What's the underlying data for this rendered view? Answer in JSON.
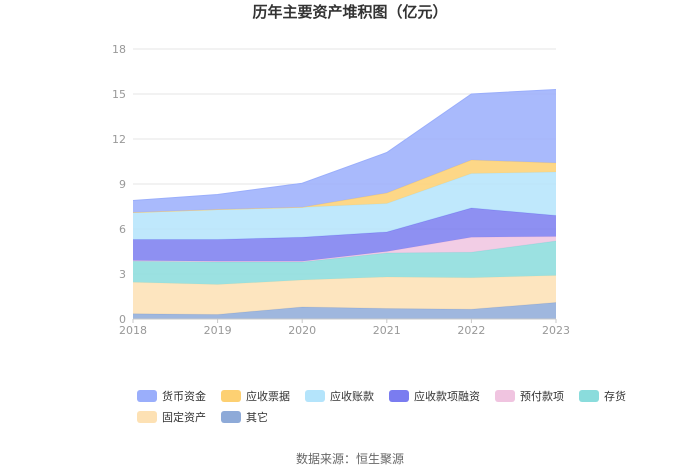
{
  "chart_data": {
    "type": "area",
    "stacked": true,
    "title": "历年主要资产堆积图（亿元）",
    "x": [
      "2018",
      "2019",
      "2020",
      "2021",
      "2022",
      "2023"
    ],
    "ylim": [
      0,
      18
    ],
    "yticks": [
      "0",
      "3",
      "6",
      "9",
      "12",
      "15",
      "18"
    ],
    "grid": true,
    "legend_position": "bottom",
    "series": [
      {
        "name": "其它",
        "color": "#8eaad8",
        "values": [
          0.35,
          0.3,
          0.8,
          0.7,
          0.65,
          1.1
        ]
      },
      {
        "name": "固定资产",
        "color": "#fde1b4",
        "values": [
          2.1,
          2.0,
          1.8,
          2.1,
          2.1,
          1.8
        ]
      },
      {
        "name": "存货",
        "color": "#8adcdc",
        "values": [
          1.4,
          1.5,
          1.2,
          1.6,
          1.7,
          2.3
        ]
      },
      {
        "name": "预付款项",
        "color": "#f0c4e0",
        "values": [
          0.05,
          0.05,
          0.05,
          0.1,
          1.0,
          0.3
        ]
      },
      {
        "name": "应收款项融资",
        "color": "#7a7cf0",
        "values": [
          1.4,
          1.45,
          1.6,
          1.3,
          1.95,
          1.4
        ]
      },
      {
        "name": "应收账款",
        "color": "#b4e4fb",
        "values": [
          1.8,
          2.0,
          2.0,
          1.9,
          2.3,
          2.9
        ]
      },
      {
        "name": "应收票据",
        "color": "#fdd072",
        "values": [
          0.0,
          0.0,
          0.0,
          0.7,
          0.9,
          0.6
        ]
      },
      {
        "name": "货币资金",
        "color": "#9aaefb",
        "values": [
          0.8,
          1.0,
          1.6,
          2.7,
          4.4,
          4.9
        ]
      }
    ],
    "legend_order": [
      "货币资金",
      "应收票据",
      "应收账款",
      "应收款项融资",
      "预付款项",
      "存货",
      "固定资产",
      "其它"
    ]
  },
  "source": "数据来源：恒生聚源"
}
